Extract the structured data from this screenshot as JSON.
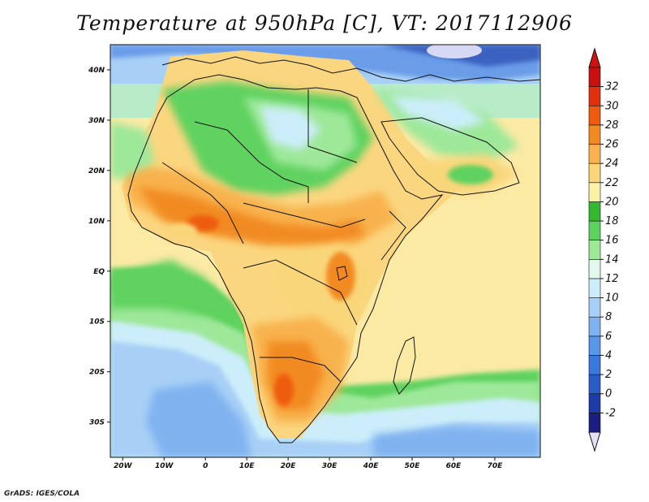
{
  "title": "Temperature at 950hPa [C], VT: 2017112906",
  "credit": "GrADS: IGES/COLA",
  "map": {
    "region": "Africa",
    "variable": "Temperature at 950hPa",
    "units": "C",
    "valid_time": "2017112906",
    "lon_range": [
      -23,
      81
    ],
    "lat_range": [
      -37,
      45
    ],
    "x_ticks": [
      {
        "value": -20,
        "label": "20W"
      },
      {
        "value": -10,
        "label": "10W"
      },
      {
        "value": 0,
        "label": "0"
      },
      {
        "value": 10,
        "label": "10E"
      },
      {
        "value": 20,
        "label": "20E"
      },
      {
        "value": 30,
        "label": "30E"
      },
      {
        "value": 40,
        "label": "40E"
      },
      {
        "value": 50,
        "label": "50E"
      },
      {
        "value": 60,
        "label": "60E"
      },
      {
        "value": 70,
        "label": "70E"
      }
    ],
    "y_ticks": [
      {
        "value": 40,
        "label": "40N"
      },
      {
        "value": 30,
        "label": "30N"
      },
      {
        "value": 20,
        "label": "20N"
      },
      {
        "value": 10,
        "label": "10N"
      },
      {
        "value": 0,
        "label": "EQ"
      },
      {
        "value": -10,
        "label": "10S"
      },
      {
        "value": -20,
        "label": "20S"
      },
      {
        "value": -30,
        "label": "30S"
      }
    ]
  },
  "colorbar": {
    "labels": [
      "-2",
      "0",
      "2",
      "4",
      "6",
      "8",
      "10",
      "12",
      "14",
      "16",
      "18",
      "20",
      "22",
      "24",
      "26",
      "28",
      "30",
      "32"
    ],
    "colors": [
      "#1a1e80",
      "#1e3ca8",
      "#2a5cc8",
      "#3a78de",
      "#5a96ea",
      "#80b2f0",
      "#a8d0f6",
      "#cceefa",
      "#e2f8ee",
      "#9ee89a",
      "#5ed25e",
      "#34b834",
      "#fbf2a8",
      "#fad67a",
      "#f8b24e",
      "#f28a22",
      "#ee5c10",
      "#e03010",
      "#c81010"
    ],
    "min_color": "#e4e0f8",
    "max_color": "#d21010"
  }
}
